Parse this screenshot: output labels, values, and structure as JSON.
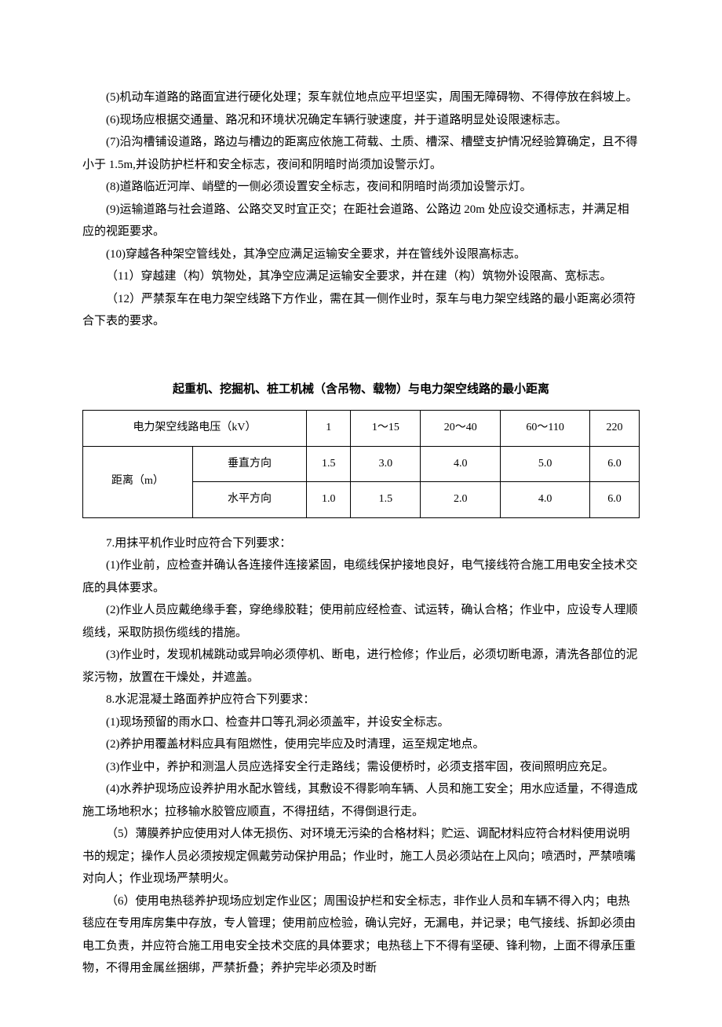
{
  "paragraphs": {
    "p5": "(5)机动车道路的路面宜进行硬化处理；泵车就位地点应平坦坚实，周围无障碍物、不得停放在斜坡上。",
    "p6": "(6)现场应根据交通量、路况和环境状况确定车辆行驶速度，并于道路明显处设限速标志。",
    "p7": "(7)沿沟槽铺设道路，路边与槽边的距离应依施工荷载、土质、槽深、槽壁支护情况经验算确定，且不得小于 1.5m,并设防护栏杆和安全标志，夜间和阴暗时尚须加设警示灯。",
    "p8": "(8)道路临近河岸、峭壁的一侧必须设置安全标志，夜间和阴暗时尚须加设警示灯。",
    "p9": "(9)运输道路与社会道路、公路交叉时宜正交；在距社会道路、公路边 20m 处应设交通标志，并满足相应的视距要求。",
    "p10": "(10)穿越各种架空管线处，其净空应满足运输安全要求，并在管线外设限高标志。",
    "p11": "（11）穿越建（构）筑物处，其净空应满足运输安全要求，并在建（构）筑物外设限高、宽标志。",
    "p12": "（12）严禁泵车在电力架空线路下方作业，需在其一侧作业时，泵车与电力架空线路的最小距离必须符合下表的要求。"
  },
  "table": {
    "title": "起重机、挖掘机、桩工机械（含吊物、载物）与电力架空线路的最小距离",
    "header_voltage": "电力架空线路电压（kV）",
    "header_distance": "距离（m）",
    "sub_vertical": "垂直方向",
    "sub_horizontal": "水平方向",
    "voltage_cols": [
      "1",
      "1～15",
      "20～40",
      "60～110",
      "220"
    ],
    "vertical_vals": [
      "1.5",
      "3.0",
      "4.0",
      "5.0",
      "6.0"
    ],
    "horizontal_vals": [
      "1.0",
      "1.5",
      "2.0",
      "4.0",
      "6.0"
    ]
  },
  "paragraphs2": {
    "p7a": "7.用抹平机作业时应符合下列要求：",
    "p7_1": "(1)作业前，应检查并确认各连接件连接紧固，电缆线保护接地良好，电气接线符合施工用电安全技术交底的具体要求。",
    "p7_2": "(2)作业人员应戴绝缘手套，穿绝缘胶鞋；使用前应经检查、试运转，确认合格；作业中，应设专人理顺缆线，采取防损伤缆线的措施。",
    "p7_3": "(3)作业时，发现机械跳动或异响必须停机、断电，进行检修；作业后，必须切断电源，清洗各部位的泥浆污物，放置在干燥处，并遮盖。",
    "p8a": "8.水泥混凝土路面养护应符合下列要求：",
    "p8_1": "(1)现场预留的雨水口、检查井口等孔洞必须盖牢，并设安全标志。",
    "p8_2": "(2)养护用覆盖材料应具有阻燃性，使用完毕应及时清理，运至规定地点。",
    "p8_3": "(3)作业中，养护和测温人员应选择安全行走路线；需设便桥时，必须支搭牢固，夜间照明应充足。",
    "p8_4": "(4)水养护现场应设养护用水配水管线，其敷设不得影响车辆、人员和施工安全；用水应适量，不得造成施工场地积水；拉移输水胶管应顺直，不得扭结，不得倒退行走。",
    "p8_5": "（5）薄膜养护应使用对人体无损伤、对环境无污染的合格材料；贮运、调配材料应符合材料使用说明书的规定；操作人员必须按规定佩戴劳动保护用品；作业时，施工人员必须站在上风向；喷洒时，严禁喷嘴对向人；作业现场严禁明火。",
    "p8_6": "（6）使用电热毯养护现场应划定作业区；周围设护栏和安全标志，非作业人员和车辆不得入内；电热毯应在专用库房集中存放，专人管理；使用前应检验，确认完好，无漏电，并记录；电气接线、拆卸必须由电工负责，并应符合施工用电安全技术交底的具体要求；电热毯上下不得有坚硬、锋利物，上面不得承压重物，不得用金属丝捆绑，严禁折叠；养护完毕必须及时断"
  }
}
